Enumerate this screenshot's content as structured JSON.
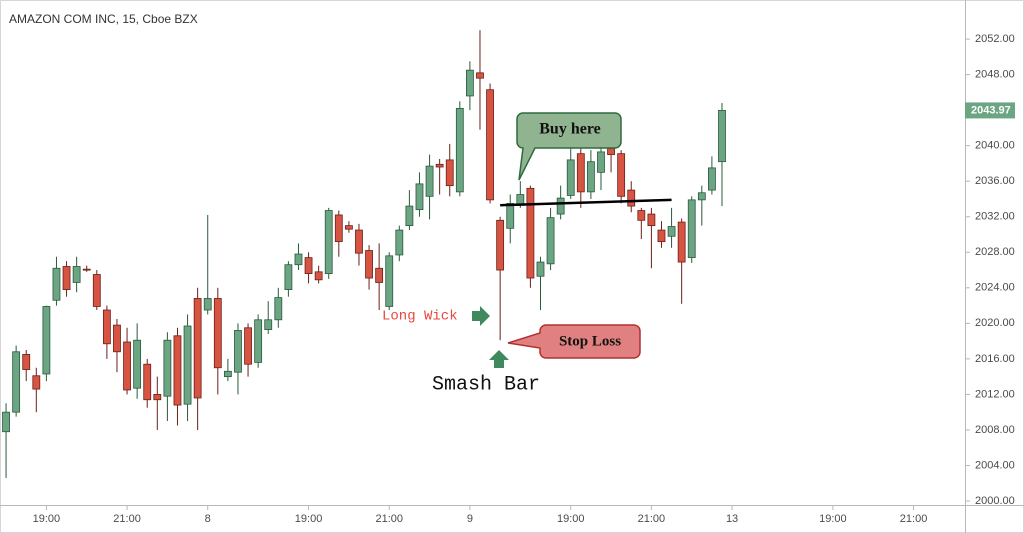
{
  "chart_data": {
    "type": "candlestick",
    "title": "AMAZON COM INC, 15, Cboe BZX",
    "up_color": "#6ba583",
    "down_color": "#d75442",
    "open": [
      2007.8,
      2010.0,
      2016.5,
      2014.1,
      2014.3,
      2022.6,
      2026.4,
      2024.6,
      2026.1,
      2025.5,
      2021.5,
      2019.8,
      2017.9,
      2012.7,
      2015.4,
      2012.0,
      2011.8,
      2018.6,
      2010.9,
      2022.8,
      2021.5,
      2022.8,
      2014.0,
      2014.5,
      2019.5,
      2015.6,
      2019.3,
      2020.4,
      2023.8,
      2026.6,
      2027.4,
      2025.8,
      2025.6,
      2032.2,
      2031.0,
      2030.5,
      2028.2,
      2026.2,
      2021.9,
      2027.7,
      2031.0,
      2032.8,
      2034.3,
      2037.9,
      2038.4,
      2034.8,
      2045.6,
      2048.2,
      2046.3,
      2031.6,
      2030.7,
      2033.3,
      2035.2,
      2025.3,
      2026.7,
      2032.3,
      2034.4,
      2039.1,
      2034.8,
      2037.0,
      2039.7,
      2039.1,
      2035.0,
      2032.7,
      2032.3,
      2030.5,
      2029.8,
      2031.4,
      2027.4,
      2033.9,
      2035.0,
      2038.2
    ],
    "high": [
      2011.0,
      2017.5,
      2017.0,
      2015.0,
      2022.0,
      2027.5,
      2027.0,
      2027.5,
      2026.5,
      2026.0,
      2022.0,
      2020.5,
      2019.5,
      2020.0,
      2016.0,
      2014.0,
      2019.0,
      2019.5,
      2021.0,
      2024.0,
      2032.2,
      2024.0,
      2016.0,
      2020.0,
      2020.0,
      2021.0,
      2022.5,
      2024.0,
      2027.0,
      2029.0,
      2028.0,
      2026.5,
      2033.0,
      2032.7,
      2031.5,
      2031.2,
      2028.8,
      2029.0,
      2028.0,
      2031.0,
      2035.0,
      2037.0,
      2039.0,
      2038.5,
      2040.2,
      2045.0,
      2049.5,
      2053.0,
      2047.0,
      2032.0,
      2034.5,
      2036.0,
      2035.5,
      2027.5,
      2033.0,
      2035.5,
      2040.0,
      2040.0,
      2039.5,
      2040.5,
      2040.5,
      2039.5,
      2036.0,
      2033.0,
      2033.0,
      2031.5,
      2033.0,
      2031.8,
      2034.3,
      2035.5,
      2038.8,
      2044.8
    ],
    "low": [
      2002.6,
      2009.5,
      2013.5,
      2010.0,
      2013.5,
      2022.0,
      2023.0,
      2023.5,
      2025.8,
      2021.5,
      2016.0,
      2014.5,
      2012.0,
      2011.5,
      2010.5,
      2008.0,
      2009.0,
      2008.5,
      2009.0,
      2008.0,
      2021.0,
      2012.0,
      2013.5,
      2012.0,
      2014.0,
      2015.0,
      2018.8,
      2019.5,
      2023.0,
      2026.0,
      2024.5,
      2024.5,
      2025.0,
      2027.5,
      2030.2,
      2026.5,
      2023.8,
      2021.5,
      2021.5,
      2027.0,
      2030.5,
      2032.0,
      2031.7,
      2034.5,
      2034.3,
      2034.3,
      2044.0,
      2041.8,
      2033.5,
      2018.1,
      2029.0,
      2033.0,
      2024.0,
      2021.5,
      2026.0,
      2031.7,
      2034.0,
      2033.0,
      2034.0,
      2035.0,
      2037.0,
      2033.5,
      2032.5,
      2029.5,
      2026.2,
      2028.5,
      2028.5,
      2022.2,
      2026.8,
      2031.0,
      2034.5,
      2033.2
    ],
    "close": [
      2010.0,
      2016.8,
      2014.8,
      2012.6,
      2021.9,
      2026.2,
      2023.8,
      2026.4,
      2026.0,
      2021.9,
      2017.7,
      2016.8,
      2012.5,
      2018.1,
      2011.4,
      2011.4,
      2018.1,
      2010.8,
      2019.7,
      2011.6,
      2022.8,
      2015.0,
      2014.6,
      2019.2,
      2015.4,
      2020.4,
      2020.4,
      2022.9,
      2026.6,
      2027.8,
      2025.6,
      2024.9,
      2032.7,
      2029.2,
      2030.6,
      2027.9,
      2025.1,
      2024.6,
      2027.6,
      2030.5,
      2033.2,
      2035.7,
      2037.7,
      2037.6,
      2035.5,
      2044.2,
      2048.5,
      2047.6,
      2033.9,
      2026.0,
      2033.5,
      2034.5,
      2025.1,
      2026.9,
      2031.9,
      2034.1,
      2038.4,
      2034.8,
      2038.2,
      2039.3,
      2039.0,
      2034.3,
      2033.2,
      2031.6,
      2031.0,
      2029.2,
      2030.9,
      2026.9,
      2033.9,
      2034.7,
      2037.5,
      2043.97
    ],
    "xlim": [
      -0.6,
      95.1
    ],
    "xticks": [
      {
        "value": 4,
        "label": "19:00"
      },
      {
        "value": 12,
        "label": "21:00"
      },
      {
        "value": 20,
        "label": "8"
      },
      {
        "value": 30,
        "label": "19:00"
      },
      {
        "value": 38,
        "label": "21:00"
      },
      {
        "value": 46,
        "label": "9"
      },
      {
        "value": 56,
        "label": "19:00"
      },
      {
        "value": 64,
        "label": "21:00"
      },
      {
        "value": 72,
        "label": "13"
      },
      {
        "value": 82,
        "label": "19:00"
      },
      {
        "value": 90,
        "label": "21:00"
      }
    ],
    "ylim": [
      1999.55,
      2056.4
    ],
    "yticks": [
      {
        "value": 2000,
        "label": "2000.00"
      },
      {
        "value": 2004,
        "label": "2004.00"
      },
      {
        "value": 2008,
        "label": "2008.00"
      },
      {
        "value": 2012,
        "label": "2012.00"
      },
      {
        "value": 2016,
        "label": "2016.00"
      },
      {
        "value": 2020,
        "label": "2020.00"
      },
      {
        "value": 2024,
        "label": "2024.00"
      },
      {
        "value": 2028,
        "label": "2028.00"
      },
      {
        "value": 2032,
        "label": "2032.00"
      },
      {
        "value": 2036,
        "label": "2036.00"
      },
      {
        "value": 2040,
        "label": "2040.00"
      },
      {
        "value": 2044,
        "label": "2044.00"
      },
      {
        "value": 2048,
        "label": "2048.00"
      },
      {
        "value": 2052,
        "label": "2052.00"
      }
    ],
    "support_line": {
      "x": [
        49,
        66
      ],
      "y": [
        2033.3,
        2033.9
      ]
    },
    "annotations": {
      "long_wick": "Long Wick",
      "smash_bar": "Smash Bar",
      "buy_here": "Buy here",
      "stop_loss": "Stop Loss"
    }
  }
}
